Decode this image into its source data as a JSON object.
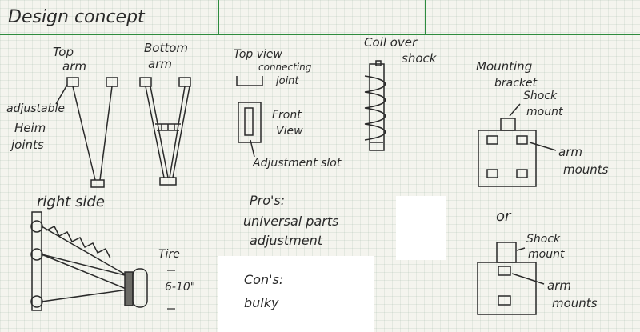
{
  "header": {
    "title": "Design concept"
  },
  "arms": {
    "top_label_1": "Top",
    "top_label_2": "arm",
    "bottom_label_1": "Bottom",
    "bottom_label_2": "arm",
    "adjustable": "adjustable",
    "heim_1": "Heim",
    "heim_2": "joints"
  },
  "joint": {
    "top_view_1": "Top view",
    "top_view_2": "connecting",
    "top_view_3": "joint",
    "front_1": "Front",
    "front_2": "View",
    "slot": "Adjustment slot"
  },
  "shock": {
    "label_1": "Coil over",
    "label_2": "shock"
  },
  "bracket": {
    "label_1": "Mounting",
    "label_2": "bracket",
    "shock_mount_1": "Shock",
    "shock_mount_2": "mount",
    "arm_mounts_1": "arm",
    "arm_mounts_2": "mounts",
    "or": "or",
    "alt_shock_1": "Shock",
    "alt_shock_2": "mount",
    "alt_arm_1": "arm",
    "alt_arm_2": "mounts"
  },
  "side": {
    "label": "right side",
    "tire": "Tire",
    "size": "6-10\""
  },
  "notes": {
    "pros_title": "Pro's:",
    "pros_1": "universal parts",
    "pros_2": "adjustment",
    "cons_title": "Con's:",
    "cons_1": "bulky"
  },
  "colors": {
    "ink": "#2a2a2a",
    "header_line": "#2e8b3e",
    "paper": "#f4f4ee"
  }
}
